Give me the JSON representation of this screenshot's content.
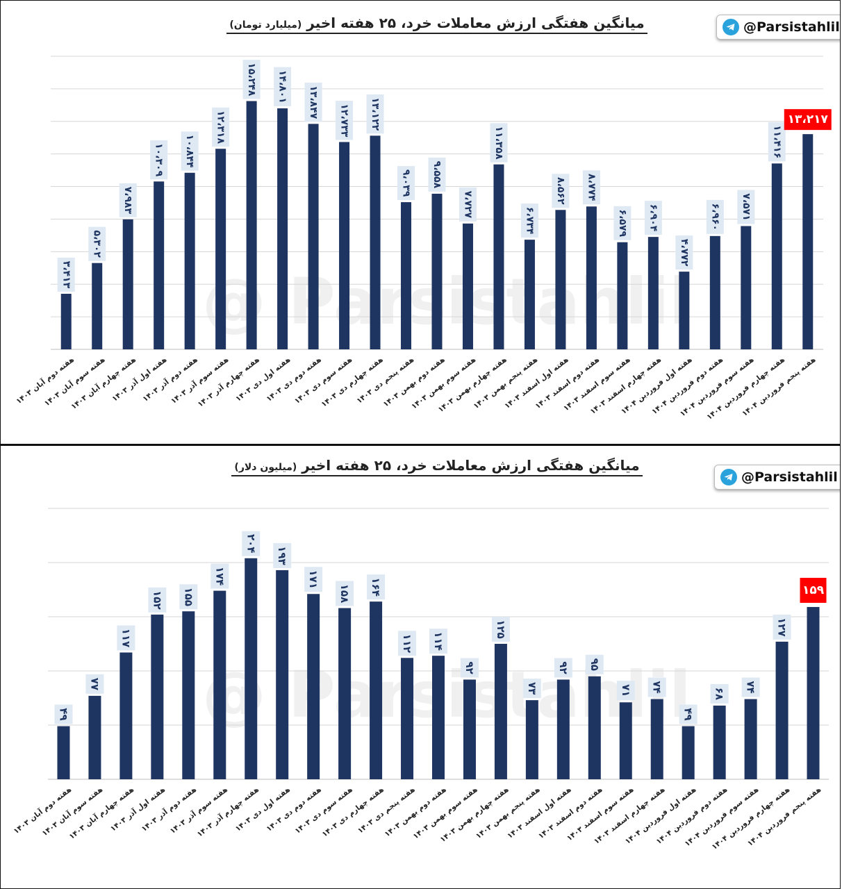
{
  "brand": {
    "handle": "@Parsistahlil",
    "watermark": "@ Parsistahlil",
    "icon": "telegram-icon",
    "accent": "#2aa3dd"
  },
  "colors": {
    "bar": "#1e3461",
    "highlight_bg": "#ff0000",
    "label_bg": "#dfe9f3",
    "label_text": "#1e3461",
    "grid": "#d6d6d6"
  },
  "categories": [
    "هفته دوم آبان ۱۴۰۳",
    "هفته سوم آبان ۱۴۰۳",
    "هفته چهارم آبان ۱۴۰۳",
    "هفته اول آذر ۱۴۰۳",
    "هفته دوم آذر ۱۴۰۳",
    "هفته سوم آذر ۱۴۰۳",
    "هفته چهارم آذر ۱۴۰۳",
    "هفته اول دی ۱۴۰۳",
    "هفته دوم دی ۱۴۰۳",
    "هفته سوم دی ۱۴۰۳",
    "هفته چهارم دی ۱۴۰۳",
    "هفته پنجم دی ۱۴۰۳",
    "هفته دوم بهمن ۱۴۰۳",
    "هفته سوم بهمن ۱۴۰۳",
    "هفته چهارم بهمن ۱۴۰۳",
    "هفته پنجم بهمن ۱۴۰۳",
    "هفته اول اسفند ۱۴۰۳",
    "هفته دوم اسفند ۱۴۰۳",
    "هفته سوم اسفند ۱۴۰۳",
    "هفته چهارم اسفند ۱۴۰۳",
    "هفته اول فروردین ۱۴۰۴",
    "هفته دوم فروردین ۱۴۰۴",
    "هفته سوم فروردین ۱۴۰۴",
    "هفته چهارم فروردین ۱۴۰۴",
    "هفته پنجم فروردین ۱۴۰۴"
  ],
  "chart_data": [
    {
      "type": "bar",
      "title": "میانگین هفتگی ارزش معاملات خرد، ۲۵ هفته اخیر",
      "unit": "(میلیارد تومان)",
      "categories_ref": "categories",
      "values": [
        3413,
        5302,
        7983,
        10309,
        10844,
        12318,
        15248,
        14801,
        13847,
        12733,
        13122,
        9039,
        9558,
        7727,
        11358,
        6734,
        8562,
        8774,
        6579,
        6904,
        4772,
        6960,
        7571,
        11416,
        13217
      ],
      "value_labels": [
        "۳،۴۱۳",
        "۵،۳۰۲",
        "۷،۹۸۳",
        "۱۰،۳۰۹",
        "۱۰،۸۴۴",
        "۱۲،۳۱۸",
        "۱۵،۲۴۸",
        "۱۴،۸۰۱",
        "۱۳،۸۴۷",
        "۱۲،۷۳۳",
        "۱۳،۱۲۲",
        "۹،۰۳۹",
        "۹،۵۵۸",
        "۷،۷۲۷",
        "۱۱،۳۵۸",
        "۶،۷۳۴",
        "۸،۵۶۲",
        "۸،۷۷۴",
        "۶،۵۷۹",
        "۶،۹۰۴",
        "۴،۷۷۲",
        "۶،۹۶۰",
        "۷،۵۷۱",
        "۱۱،۴۱۶",
        "۱۳،۲۱۷"
      ],
      "ylim": [
        0,
        18000
      ],
      "gridlines": [
        2000,
        4000,
        6000,
        8000,
        10000,
        12000,
        14000,
        16000,
        18000
      ],
      "highlight_last": true,
      "legend": "none"
    },
    {
      "type": "bar",
      "title": "میانگین هفتگی ارزش معاملات خرد، ۲۵ هفته اخیر",
      "unit": "(میلیون دلار)",
      "categories_ref": "categories",
      "values": [
        49,
        77,
        117,
        152,
        155,
        174,
        204,
        193,
        171,
        158,
        164,
        112,
        114,
        92,
        125,
        73,
        92,
        95,
        71,
        74,
        49,
        68,
        74,
        127,
        159
      ],
      "value_labels": [
        "۴۹",
        "۷۷",
        "۱۱۷",
        "۱۵۲",
        "۱۵۵",
        "۱۷۴",
        "۲۰۴",
        "۱۹۳",
        "۱۷۱",
        "۱۵۸",
        "۱۶۴",
        "۱۱۲",
        "۱۱۴",
        "۹۲",
        "۱۲۵",
        "۷۳",
        "۹۲",
        "۹۵",
        "۷۱",
        "۷۴",
        "۴۹",
        "۶۸",
        "۷۴",
        "۱۲۷",
        "۱۵۹"
      ],
      "ylim": [
        0,
        250
      ],
      "gridlines": [
        50,
        100,
        150,
        200,
        250
      ],
      "highlight_last": true,
      "legend": "none"
    }
  ]
}
